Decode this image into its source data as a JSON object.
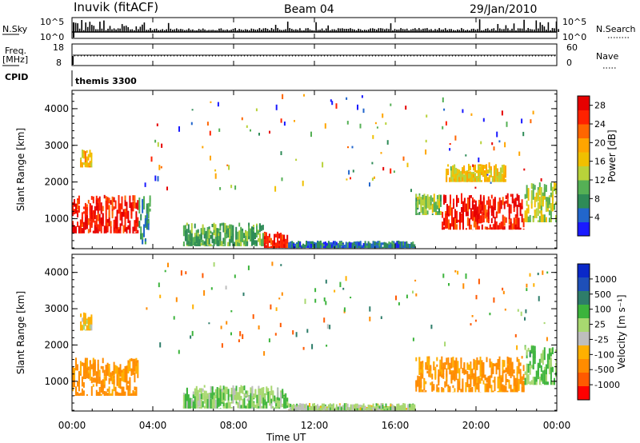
{
  "header": {
    "site": "Inuvik (fitACF)",
    "beam": "Beam 04",
    "date": "29/Jan/2010"
  },
  "summary_panel": {
    "nsky_label": "N.Sky",
    "nsky_ticks": [
      "10^5",
      "10^0"
    ],
    "nsearch_label": "N.Search",
    "nsearch_ticks": [
      "10^5",
      "10^0"
    ],
    "freq_label_line1": "Freq.",
    "freq_label_line2": "[MHz]",
    "freq_ticks": [
      "18",
      "8"
    ],
    "nave_label": "Nave",
    "nave_ticks": [
      "60",
      "0"
    ],
    "cpid_label": "CPID",
    "cpid_value": "themis 3300"
  },
  "x_axis": {
    "label": "Time UT",
    "ticks": [
      "00:00",
      "04:00",
      "08:00",
      "12:00",
      "16:00",
      "20:00",
      "00:00"
    ]
  },
  "colors": {
    "power_scale": [
      "#1a1aff",
      "#2266cc",
      "#2e8b57",
      "#55b055",
      "#b8d23a",
      "#f0c000",
      "#ffa500",
      "#ff6600",
      "#ff2200",
      "#e60000"
    ],
    "velocity_scale": [
      "#ff0000",
      "#ff5a00",
      "#ff8c00",
      "#ffb000",
      "#bebebe",
      "#a8d870",
      "#3cb43c",
      "#2e7d6a",
      "#1e4fb8",
      "#0a28c8"
    ]
  },
  "chart_data": [
    {
      "type": "heatmap",
      "title": "",
      "xlabel": "",
      "ylabel": "Slant Range [km]",
      "xlim": [
        0,
        24
      ],
      "ylim": [
        180,
        4500
      ],
      "y_ticks": [
        "1000",
        "2000",
        "3000",
        "4000"
      ],
      "colorbar_label": "Power [dB]",
      "colorbar_ticks": [
        "4",
        "8",
        "12",
        "16",
        "20",
        "24",
        "28"
      ],
      "colorbar_range": [
        0,
        30
      ],
      "regions": [
        {
          "x": [
            0.0,
            3.3
          ],
          "y": [
            600,
            1650
          ],
          "value": 27
        },
        {
          "x": [
            3.3,
            3.9
          ],
          "y": [
            300,
            1650
          ],
          "value": 8
        },
        {
          "x": [
            0.4,
            1.0
          ],
          "y": [
            2400,
            2900
          ],
          "value": 18
        },
        {
          "x": [
            5.5,
            9.5
          ],
          "y": [
            250,
            900
          ],
          "value": 10
        },
        {
          "x": [
            9.5,
            10.7
          ],
          "y": [
            200,
            650
          ],
          "value": 26
        },
        {
          "x": [
            10.7,
            17.0
          ],
          "y": [
            200,
            400
          ],
          "value": 6
        },
        {
          "x": [
            17.0,
            18.3
          ],
          "y": [
            1100,
            1700
          ],
          "value": 12
        },
        {
          "x": [
            18.3,
            22.4
          ],
          "y": [
            700,
            1700
          ],
          "value": 27
        },
        {
          "x": [
            22.4,
            24.0
          ],
          "y": [
            900,
            2000
          ],
          "value": 14
        },
        {
          "x": [
            18.5,
            21.5
          ],
          "y": [
            2000,
            2500
          ],
          "value": 16
        }
      ]
    },
    {
      "type": "heatmap",
      "title": "",
      "xlabel": "Time UT",
      "ylabel": "Slant Range [km]",
      "xlim": [
        0,
        24
      ],
      "ylim": [
        180,
        4500
      ],
      "y_ticks": [
        "1000",
        "2000",
        "3000",
        "4000"
      ],
      "colorbar_label": "Velocity [m s⁻¹]",
      "colorbar_ticks": [
        "1000",
        "500",
        "100",
        "25",
        "-25",
        "-100",
        "-500",
        "-1000"
      ],
      "regions": [
        {
          "x": [
            0.0,
            3.3
          ],
          "y": [
            600,
            1650
          ],
          "value": -150
        },
        {
          "x": [
            0.4,
            1.0
          ],
          "y": [
            2400,
            2900
          ],
          "value": 0
        },
        {
          "x": [
            5.5,
            10.7
          ],
          "y": [
            250,
            900
          ],
          "value": 80
        },
        {
          "x": [
            10.7,
            17.0
          ],
          "y": [
            200,
            400
          ],
          "value": 40
        },
        {
          "x": [
            17.0,
            22.4
          ],
          "y": [
            700,
            1700
          ],
          "value": -150
        },
        {
          "x": [
            22.4,
            24.0
          ],
          "y": [
            900,
            2000
          ],
          "value": 100
        }
      ]
    }
  ]
}
